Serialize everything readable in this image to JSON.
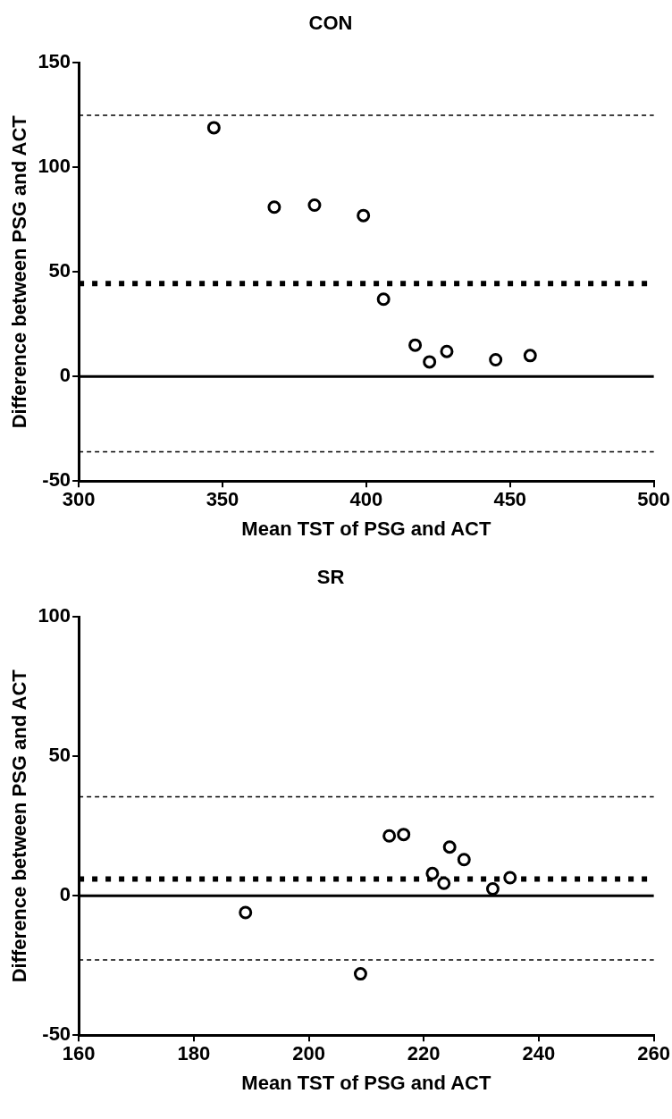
{
  "chart_data": [
    {
      "type": "scatter",
      "title": "CON",
      "xlabel": "Mean TST of PSG and ACT",
      "ylabel": "Difference between PSG and ACT",
      "series": [
        {
          "color": "#000000",
          "x": [
            347,
            368,
            382,
            399,
            406,
            417,
            422,
            428,
            445,
            457
          ],
          "values": [
            119,
            81,
            82,
            77,
            37,
            15,
            7,
            12,
            8,
            10
          ]
        }
      ],
      "xlim": [
        300,
        500
      ],
      "xticks": [
        300,
        350,
        400,
        450,
        500
      ],
      "ylim": [
        -50,
        150
      ],
      "yticks": [
        -50,
        0,
        50,
        100,
        150
      ],
      "ref_lines": [
        {
          "axis": "y",
          "value": 125,
          "color": "#000000",
          "line_style": "dashed"
        },
        {
          "axis": "y",
          "value": 44.5,
          "color": "#000000",
          "line_style": "dotted"
        },
        {
          "axis": "y",
          "value": 0,
          "color": "#000000",
          "line_style": "solid"
        },
        {
          "axis": "y",
          "value": -36,
          "color": "#000000",
          "line_style": "dashed"
        }
      ],
      "marker": "circle",
      "grid": false,
      "legend": false
    },
    {
      "type": "scatter",
      "title": "SR",
      "xlabel": "Mean TST of PSG and ACT",
      "ylabel": "Difference between PSG and ACT",
      "series": [
        {
          "color": "#000000",
          "x": [
            189,
            209,
            214,
            216.5,
            221.5,
            223.5,
            224.5,
            227,
            232,
            235
          ],
          "values": [
            -6,
            -28,
            21.5,
            22,
            8,
            4.5,
            17.5,
            13,
            2.5,
            6.5
          ]
        }
      ],
      "xlim": [
        160,
        260
      ],
      "xticks": [
        160,
        180,
        200,
        220,
        240,
        260
      ],
      "ylim": [
        -50,
        100
      ],
      "yticks": [
        -50,
        0,
        50,
        100
      ],
      "ref_lines": [
        {
          "axis": "y",
          "value": 35.5,
          "color": "#000000",
          "line_style": "dashed"
        },
        {
          "axis": "y",
          "value": 6,
          "color": "#000000",
          "line_style": "dotted"
        },
        {
          "axis": "y",
          "value": 0,
          "color": "#000000",
          "line_style": "solid"
        },
        {
          "axis": "y",
          "value": -23,
          "color": "#000000",
          "line_style": "dashed"
        }
      ],
      "marker": "circle",
      "grid": false,
      "legend": false
    }
  ]
}
